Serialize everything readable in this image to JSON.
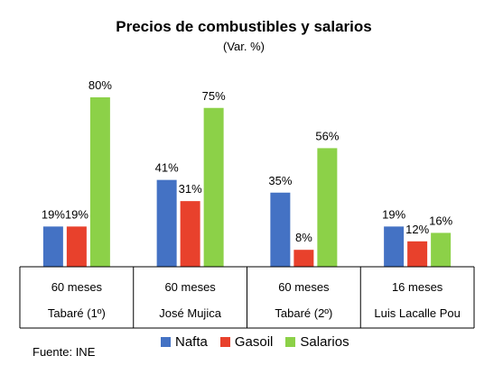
{
  "chart_data": {
    "type": "bar",
    "title": "Precios de combustibles y salarios",
    "subtitle": "(Var. %)",
    "categories": [
      {
        "period": "60 meses",
        "name": "Tabaré (1º)"
      },
      {
        "period": "60 meses",
        "name": "José Mujica"
      },
      {
        "period": "60 meses",
        "name": "Tabaré (2º)"
      },
      {
        "period": "16 meses",
        "name": "Luis Lacalle Pou"
      }
    ],
    "series": [
      {
        "name": "Nafta",
        "color": "#4472C4",
        "values": [
          19,
          41,
          35,
          19
        ]
      },
      {
        "name": "Gasoil",
        "color": "#E8412C",
        "values": [
          19,
          31,
          8,
          12
        ]
      },
      {
        "name": "Salarios",
        "color": "#8CD148",
        "values": [
          80,
          75,
          56,
          16
        ]
      }
    ],
    "value_suffix": "%",
    "ylim": [
      0,
      80
    ],
    "grid": false,
    "legend_position": "bottom"
  },
  "source": "Fuente: INE"
}
